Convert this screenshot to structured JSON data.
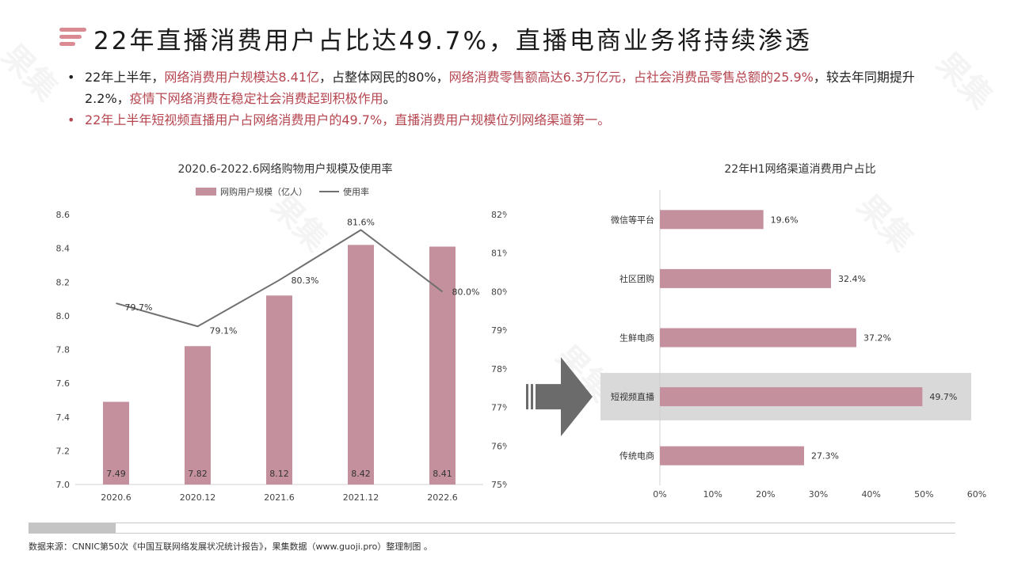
{
  "title": "22年直播消费用户占比达49.7%，直播电商业务将持续渗透",
  "bullets": [
    {
      "parts": [
        {
          "text": "22年上半年，",
          "hl": false
        },
        {
          "text": "网络消费用户规模达8.41亿",
          "hl": true
        },
        {
          "text": "，占整体网民的80%，",
          "hl": false
        },
        {
          "text": "网络消费零售额高达6.3万亿元，占社会消费品零售总额的25.9%",
          "hl": true
        },
        {
          "text": "，较去年同期提升2.2%，",
          "hl": false
        },
        {
          "text": "疫情下网络消费在稳定社会消费起到积极作用",
          "hl": true
        },
        {
          "text": "。",
          "hl": false
        }
      ]
    },
    {
      "parts": [
        {
          "text": "22年上半年短视频直播用户占网络消费用户的49.7%，直播消费用户规模位列网络渠道第一。",
          "hl": true
        }
      ]
    }
  ],
  "colors": {
    "accent": "#c4909e",
    "highlight": "#b5454f",
    "line": "#707070",
    "arrow": "#6b6b6b",
    "band": "#d9d9d9"
  },
  "chart_data": [
    {
      "type": "bar+line",
      "title": "2020.6-2022.6网络购物用户规模及使用率",
      "categories": [
        "2020.6",
        "2020.12",
        "2021.6",
        "2021.12",
        "2022.6"
      ],
      "series": [
        {
          "name": "网购用户规模（亿人）",
          "type": "bar",
          "axis": "left",
          "values": [
            7.49,
            7.82,
            8.12,
            8.42,
            8.41
          ],
          "labels": [
            "7.49",
            "7.82",
            "8.12",
            "8.42",
            "8.41"
          ]
        },
        {
          "name": "使用率",
          "type": "line",
          "axis": "right",
          "values": [
            79.7,
            79.1,
            80.3,
            81.6,
            80.0
          ],
          "labels": [
            "79.7%",
            "79.1%",
            "80.3%",
            "81.6%",
            "80.0%"
          ]
        }
      ],
      "ylim_left": [
        7.0,
        8.6
      ],
      "yticks_left": [
        "7.0",
        "7.2",
        "7.4",
        "7.6",
        "7.8",
        "8.0",
        "8.2",
        "8.4",
        "8.6"
      ],
      "ylim_right": [
        75,
        82
      ],
      "yticks_right": [
        "75%",
        "76%",
        "77%",
        "78%",
        "79%",
        "80%",
        "81%",
        "82%"
      ],
      "legend_position": "top",
      "grid": false
    },
    {
      "type": "bar",
      "orientation": "horizontal",
      "title": "22年H1网络渠道消费用户占比",
      "categories": [
        "微信等平台",
        "社区团购",
        "生鲜电商",
        "短视频直播",
        "传统电商"
      ],
      "values": [
        19.6,
        32.4,
        37.2,
        49.7,
        27.3
      ],
      "labels": [
        "19.6%",
        "32.4%",
        "37.2%",
        "49.7%",
        "27.3%"
      ],
      "highlighted": "短视频直播",
      "xlim": [
        0,
        60
      ],
      "xticks": [
        "0%",
        "10%",
        "20%",
        "30%",
        "40%",
        "50%",
        "60%"
      ],
      "grid": false
    }
  ],
  "source": "数据来源：CNNIC第50次《中国互联网络发展状况统计报告》，果集数据（www.guoji.pro）整理制图 。"
}
